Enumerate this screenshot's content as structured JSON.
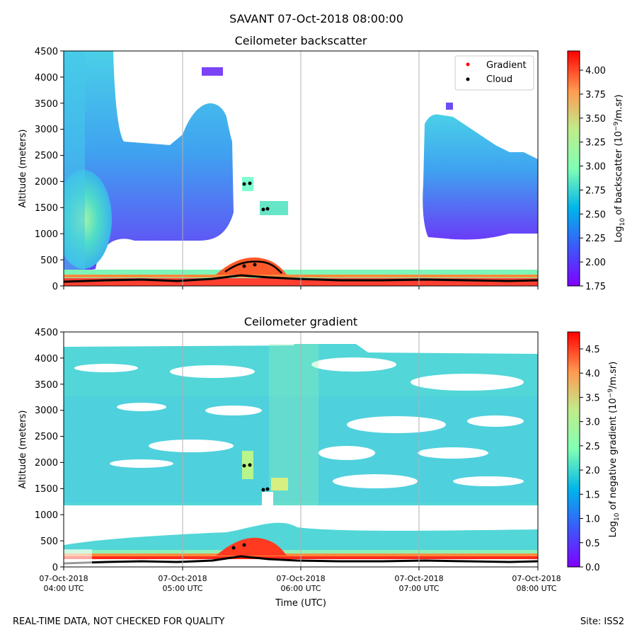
{
  "figure_title": "SAVANT 07-Oct-2018 08:00:00",
  "footer_left": "REAL-TIME DATA, NOT CHECKED FOR QUALITY",
  "footer_right": "Site: ISS2",
  "chart_data": [
    {
      "type": "heatmap",
      "title": "Ceilometer backscatter",
      "ylabel": "Altitude (meters)",
      "ylim": [
        0,
        4500
      ],
      "y_ticks": [
        "0",
        "500",
        "1000",
        "1500",
        "2000",
        "2500",
        "3000",
        "3500",
        "4000",
        "4500"
      ],
      "x_range_hours": [
        4,
        8
      ],
      "x_gridlines_hours": [
        5,
        6,
        7
      ],
      "colorbar": {
        "label_prefix": "Log",
        "label_sub": "10",
        "label_mid": " of backscatter (10",
        "label_sup": "−9",
        "label_suffix": "/m.sr)",
        "range": [
          1.75,
          4.2
        ],
        "ticks": [
          "1.75",
          "2.00",
          "2.25",
          "2.50",
          "2.75",
          "3.00",
          "3.25",
          "3.50",
          "3.75",
          "4.00"
        ],
        "colormap": "rainbow"
      },
      "legend": {
        "position": "top-right",
        "entries": [
          {
            "label": "Gradient",
            "color": "#ff0000"
          },
          {
            "label": "Cloud",
            "color": "#000000"
          }
        ]
      }
    },
    {
      "type": "heatmap",
      "title": "Ceilometer gradient",
      "ylabel": "Altitude (meters)",
      "xlabel": "Time (UTC)",
      "ylim": [
        0,
        4500
      ],
      "y_ticks": [
        "0",
        "500",
        "1000",
        "1500",
        "2000",
        "2500",
        "3000",
        "3500",
        "4000",
        "4500"
      ],
      "x_ticks": [
        {
          "line1": "07-Oct-2018",
          "line2": "04:00 UTC"
        },
        {
          "line1": "07-Oct-2018",
          "line2": "05:00 UTC"
        },
        {
          "line1": "07-Oct-2018",
          "line2": "06:00 UTC"
        },
        {
          "line1": "07-Oct-2018",
          "line2": "07:00 UTC"
        },
        {
          "line1": "07-Oct-2018",
          "line2": "08:00 UTC"
        }
      ],
      "x_range_hours": [
        4,
        8
      ],
      "colorbar": {
        "label_prefix": "Log",
        "label_sub": "10",
        "label_mid": " of negative gradient (10",
        "label_sup": "−9",
        "label_suffix": "/m.sr)",
        "range": [
          0.0,
          4.85
        ],
        "ticks": [
          "0.0",
          "0.5",
          "1.0",
          "1.5",
          "2.0",
          "2.5",
          "3.0",
          "3.5",
          "4.0",
          "4.5"
        ],
        "colormap": "rainbow"
      }
    }
  ]
}
